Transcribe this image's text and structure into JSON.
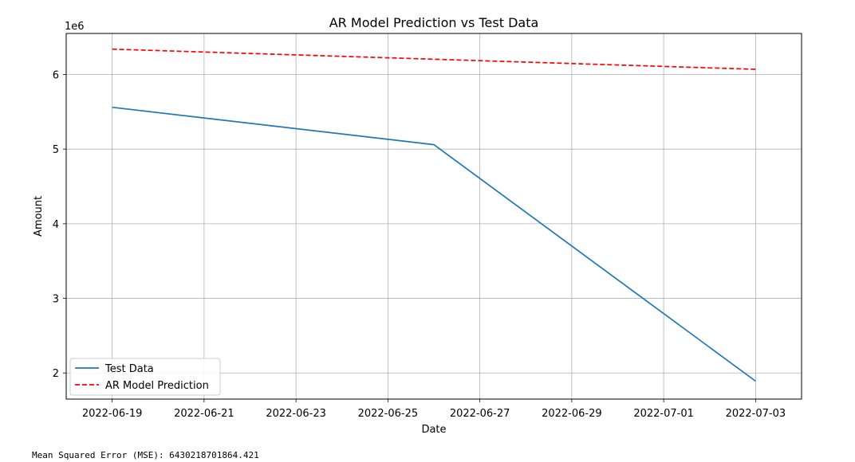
{
  "chart_data": {
    "type": "line",
    "title": "AR Model Prediction vs Test Data",
    "xlabel": "Date",
    "ylabel": "Amount",
    "y_offset_label": "1e6",
    "x_ticks": [
      "2022-06-19",
      "2022-06-21",
      "2022-06-23",
      "2022-06-25",
      "2022-06-27",
      "2022-06-29",
      "2022-07-01",
      "2022-07-03"
    ],
    "y_ticks": [
      2,
      3,
      4,
      5,
      6
    ],
    "xlim": [
      "2022-06-18",
      "2022-07-04"
    ],
    "ylim": [
      1.65,
      6.55
    ],
    "grid": true,
    "legend_position": "lower-left",
    "series": [
      {
        "name": "Test Data",
        "color": "#1f77b4",
        "dash": "solid",
        "x": [
          "2022-06-19",
          "2022-06-26",
          "2022-07-03"
        ],
        "y": [
          5.56,
          5.06,
          1.89
        ]
      },
      {
        "name": "AR Model Prediction",
        "color": "#ff0000",
        "dash": "dashed",
        "x": [
          "2022-06-19",
          "2022-07-03"
        ],
        "y": [
          6.34,
          6.07
        ]
      }
    ]
  },
  "output": {
    "mse_text": "Mean Squared Error (MSE): 6430218701864.421"
  }
}
